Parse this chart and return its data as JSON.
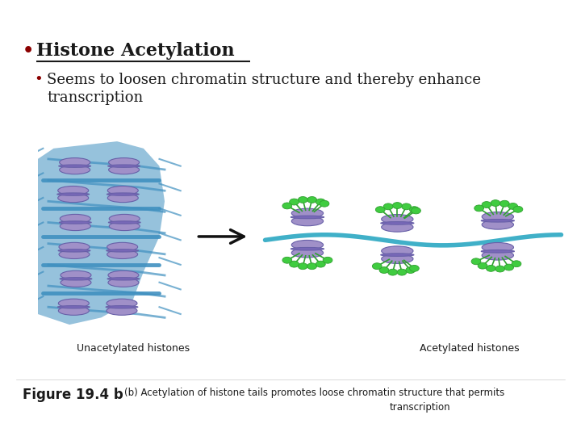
{
  "bg_color": "#ffffff",
  "title_bullet_char": "•",
  "title_text": "Histone Acetylation",
  "title_color": "#1a1a1a",
  "bullet_color": "#8b0000",
  "sub_bullet_char": "•",
  "sub_text_line1": "Seems to loosen chromatin structure and thereby enhance",
  "sub_text_line2": "transcription",
  "sub_color": "#1a1a1a",
  "label_left": "Unacetylated histones",
  "label_right": "Acetylated histones",
  "label_color": "#1a1a1a",
  "fig_label": "Figure 19.4 b",
  "fig_caption_line1": "(b) Acetylation of histone tails promotes loose chromatin structure that permits",
  "fig_caption_line2": "transcription",
  "caption_color": "#1a1a1a",
  "title_fontsize": 16,
  "sub_fontsize": 13,
  "label_fontsize": 9,
  "caption_fontsize": 8.5,
  "fig_label_fontsize": 12,
  "histone_color": "#a090c8",
  "histone_edge": "#6860a8",
  "histone_band": "#7868b8",
  "dna_left_color": "#4090c0",
  "dna_right_color": "#40b0c8",
  "green_dot": "#40cc40",
  "green_stem": "#30a030",
  "arrow_color": "#111111"
}
